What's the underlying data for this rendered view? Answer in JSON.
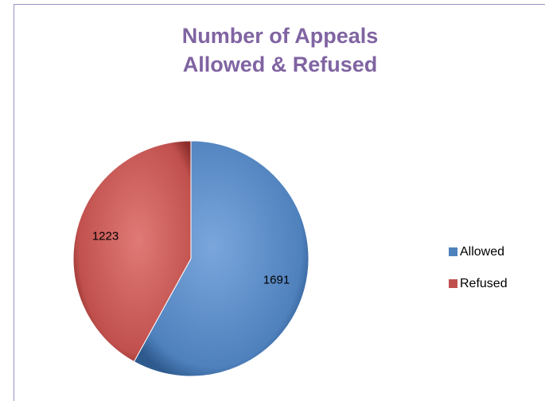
{
  "chart_data": {
    "type": "pie",
    "title": [
      "Number of Appeals",
      "Allowed & Refused"
    ],
    "categories": [
      "Allowed",
      "Refused"
    ],
    "values": [
      1691,
      1223
    ],
    "colors": [
      "#4f81bd",
      "#c0504d"
    ],
    "legend": "right"
  }
}
